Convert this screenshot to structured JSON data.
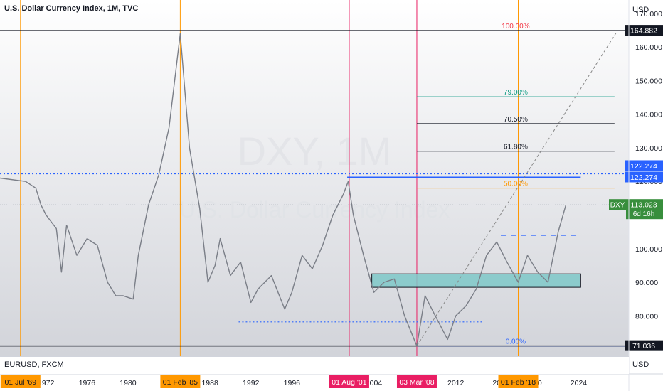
{
  "header": {
    "title": "U.S. Dollar Currency Index, 1M, TVC"
  },
  "price_axis": {
    "unit": "USD"
  },
  "lower_pane": {
    "label": "EURUSD, FXCM",
    "unit": "USD"
  },
  "watermark": {
    "symbol": "DXY, 1M",
    "name": "U.S. Dollar Currency Index"
  },
  "colors": {
    "orange": "#ff9800",
    "pink": "#e91e63",
    "blue": "#2962ff",
    "teal": "#7ec8c8",
    "fib_red": "#f23645",
    "fib_green": "#089981",
    "fib_orange": "#ff9800",
    "dark": "#131722"
  },
  "chart_data": {
    "type": "line",
    "ylim": [
      68,
      174
    ],
    "y_ticks": [
      80,
      90,
      100,
      110,
      120,
      130,
      140,
      150,
      160,
      170
    ],
    "y_tick_labels": [
      "80.000",
      "90.000",
      "100.000",
      "",
      "120.000",
      "130.000",
      "140.000",
      "150.000",
      "160.000",
      "170.000"
    ],
    "x_range": [
      1967.5,
      2028.9
    ],
    "x_ticks": [
      {
        "year": 1972,
        "label": "1972"
      },
      {
        "year": 1976,
        "label": "1976"
      },
      {
        "year": 1980,
        "label": "1980"
      },
      {
        "year": 1988,
        "label": "1988"
      },
      {
        "year": 1992,
        "label": "1992"
      },
      {
        "year": 1996,
        "label": "1996"
      },
      {
        "year": 2000,
        "label": "2"
      },
      {
        "year": 2004,
        "label": "2004"
      },
      {
        "year": 2012,
        "label": "2012"
      },
      {
        "year": 2016,
        "label": "20"
      },
      {
        "year": 2020,
        "label": "20"
      },
      {
        "year": 2024,
        "label": "2024"
      }
    ],
    "series": [
      {
        "x": [
          1967.5,
          1970,
          1971,
          1971.5,
          1972,
          1973,
          1973.5,
          1974,
          1975,
          1976,
          1977,
          1978,
          1978.8,
          1979.5,
          1980.5,
          1981,
          1982,
          1983,
          1984,
          1985.1,
          1986,
          1987,
          1987.8,
          1988.5,
          1989,
          1990,
          1991,
          1992,
          1992.7,
          1994,
          1995.3,
          1996,
          1997,
          1998,
          1999,
          2000,
          2001,
          2001.5,
          2002,
          2003,
          2004,
          2005,
          2006,
          2007,
          2008.2,
          2009,
          2010,
          2011.2,
          2012,
          2013,
          2014,
          2015,
          2016,
          2017,
          2018.1,
          2019,
          2020,
          2021,
          2022,
          2022.75
        ],
        "y": [
          121,
          120,
          118,
          113,
          110,
          106,
          93,
          107,
          98,
          103,
          101,
          90,
          86,
          86,
          85,
          98,
          113,
          122,
          136,
          164,
          130,
          112,
          90,
          95,
          103,
          92,
          96,
          84,
          88,
          92,
          82,
          87,
          98,
          94,
          101,
          110,
          116,
          120,
          110,
          98,
          87,
          90,
          91,
          80,
          71,
          86,
          80,
          73,
          80,
          83,
          88,
          98,
          102,
          96,
          90,
          98,
          93,
          90,
          105,
          113
        ]
      }
    ],
    "vertical_markers": [
      {
        "x": 1969.5,
        "label": "01 Jul '69",
        "color": "orange"
      },
      {
        "x": 1985.1,
        "label": "01 Feb '85",
        "color": "orange"
      },
      {
        "x": 2001.6,
        "label": "01 Aug '01",
        "color": "pink"
      },
      {
        "x": 2008.2,
        "label": "03 Mar '08",
        "color": "pink"
      },
      {
        "x": 2018.1,
        "label": "01 Feb '18",
        "color": "orange"
      }
    ],
    "horizontal_lines": [
      {
        "y": 164.882,
        "label": "164.882"
      },
      {
        "y": 71.036,
        "label": "71.036"
      }
    ],
    "dotted_lines": [
      {
        "y": 122.274,
        "x1": 1967.5,
        "x2": 2028.9
      },
      {
        "y": 78.2,
        "x1": 1990.8,
        "x2": 2014.8
      },
      {
        "y": 104,
        "x1": 2016.4,
        "x2": 2023.8
      }
    ],
    "resistance_line": {
      "y": 121.2,
      "x1": 2001.4,
      "x2": 2024.2
    },
    "fib_levels": [
      {
        "pct": "100.00%",
        "y": 164.882,
        "color": "fib_red"
      },
      {
        "pct": "79.00%",
        "y": 145.2,
        "color": "fib_green"
      },
      {
        "pct": "70.50%",
        "y": 137.2,
        "color": "dark"
      },
      {
        "pct": "61.80%",
        "y": 129.0,
        "color": "dark"
      },
      {
        "pct": "50.00%",
        "y": 118.0,
        "color": "fib_orange"
      },
      {
        "pct": "0.00%",
        "y": 71.036,
        "color": "blue"
      }
    ],
    "fib_x": [
      2008.2,
      2027.5
    ],
    "zone": {
      "x1": 2003.8,
      "x2": 2024.2,
      "y1": 88.5,
      "y2": 92.5
    },
    "trend_line": {
      "x1": 2008.2,
      "y1": 71.036,
      "x2": 2027.8,
      "y2": 164.882
    },
    "price_labels": [
      {
        "y": 122.274,
        "label": "122.274"
      },
      {
        "y": 122.274,
        "label": "122.274"
      },
      {
        "y": 113.023,
        "label": "113.023",
        "symbol": "DXY",
        "sub": "6d 16h"
      }
    ]
  }
}
